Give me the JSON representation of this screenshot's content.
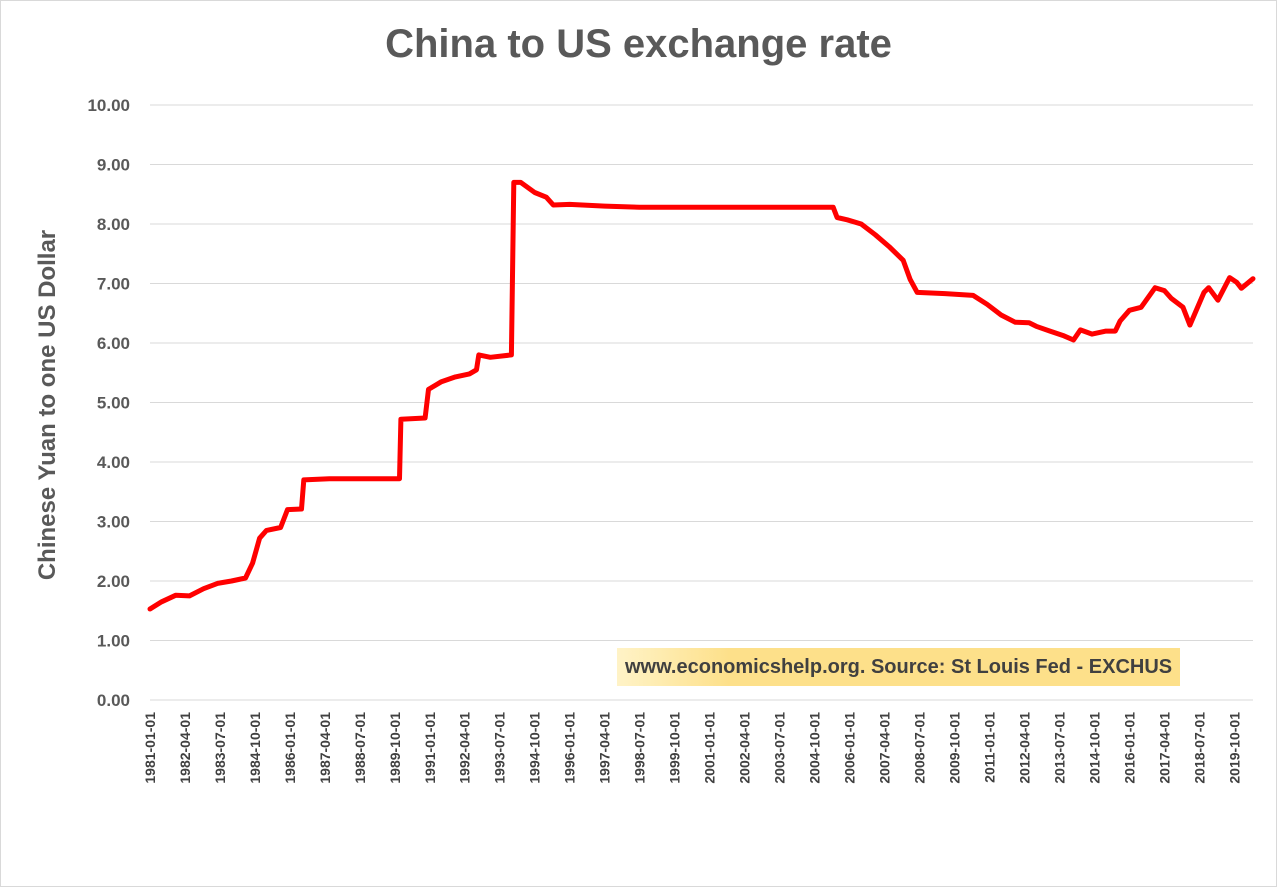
{
  "chart_data": {
    "type": "line",
    "title": "China to US exchange rate",
    "ylabel": "Chinese Yuan to one US Dollar",
    "xlabel": "",
    "ylim": [
      0,
      10
    ],
    "ytick_labels": [
      "0.00",
      "1.00",
      "2.00",
      "3.00",
      "4.00",
      "5.00",
      "6.00",
      "7.00",
      "8.00",
      "9.00",
      "10.00"
    ],
    "xtick_labels": [
      "1981-01-01",
      "1982-04-01",
      "1983-07-01",
      "1984-10-01",
      "1986-01-01",
      "1987-04-01",
      "1988-07-01",
      "1989-10-01",
      "1991-01-01",
      "1992-04-01",
      "1993-07-01",
      "1994-10-01",
      "1996-01-01",
      "1997-04-01",
      "1998-07-01",
      "1999-10-01",
      "2001-01-01",
      "2002-04-01",
      "2003-07-01",
      "2004-10-01",
      "2006-01-01",
      "2007-04-01",
      "2008-07-01",
      "2009-10-01",
      "2011-01-01",
      "2012-04-01",
      "2013-07-01",
      "2014-10-01",
      "2016-01-01",
      "2017-04-01",
      "2018-07-01",
      "2019-10-01"
    ],
    "x_range": [
      "1981-01-01",
      "2020-06-01"
    ],
    "grid": true,
    "legend": "none",
    "line_color": "#ff0000",
    "series": [
      {
        "points": [
          [
            "1981-01-01",
            1.53
          ],
          [
            "1981-06-01",
            1.65
          ],
          [
            "1981-12-01",
            1.76
          ],
          [
            "1982-06-01",
            1.75
          ],
          [
            "1982-12-01",
            1.87
          ],
          [
            "1983-06-01",
            1.96
          ],
          [
            "1983-12-01",
            2.0
          ],
          [
            "1984-06-01",
            2.05
          ],
          [
            "1984-09-01",
            2.3
          ],
          [
            "1984-12-01",
            2.72
          ],
          [
            "1985-03-01",
            2.85
          ],
          [
            "1985-09-01",
            2.9
          ],
          [
            "1985-12-01",
            3.2
          ],
          [
            "1986-06-01",
            3.21
          ],
          [
            "1986-07-01",
            3.7
          ],
          [
            "1987-06-01",
            3.72
          ],
          [
            "1988-06-01",
            3.72
          ],
          [
            "1989-06-01",
            3.72
          ],
          [
            "1989-12-01",
            3.72
          ],
          [
            "1989-12-20",
            4.72
          ],
          [
            "1990-11-01",
            4.74
          ],
          [
            "1990-12-15",
            5.22
          ],
          [
            "1991-06-01",
            5.35
          ],
          [
            "1991-12-01",
            5.43
          ],
          [
            "1992-06-01",
            5.48
          ],
          [
            "1992-09-01",
            5.55
          ],
          [
            "1992-10-01",
            5.8
          ],
          [
            "1993-03-01",
            5.76
          ],
          [
            "1993-12-01",
            5.8
          ],
          [
            "1994-01-01",
            8.7
          ],
          [
            "1994-04-01",
            8.7
          ],
          [
            "1994-10-01",
            8.53
          ],
          [
            "1995-03-01",
            8.45
          ],
          [
            "1995-06-01",
            8.32
          ],
          [
            "1996-01-01",
            8.33
          ],
          [
            "1997-04-01",
            8.3
          ],
          [
            "1998-07-01",
            8.28
          ],
          [
            "1999-10-01",
            8.28
          ],
          [
            "2001-01-01",
            8.28
          ],
          [
            "2002-04-01",
            8.28
          ],
          [
            "2003-07-01",
            8.28
          ],
          [
            "2004-10-01",
            8.28
          ],
          [
            "2005-06-01",
            8.28
          ],
          [
            "2005-07-22",
            8.11
          ],
          [
            "2005-12-01",
            8.07
          ],
          [
            "2006-06-01",
            8.0
          ],
          [
            "2006-12-01",
            7.82
          ],
          [
            "2007-06-01",
            7.62
          ],
          [
            "2007-12-01",
            7.39
          ],
          [
            "2008-03-01",
            7.07
          ],
          [
            "2008-06-01",
            6.85
          ],
          [
            "2009-06-01",
            6.83
          ],
          [
            "2010-06-01",
            6.8
          ],
          [
            "2010-12-01",
            6.65
          ],
          [
            "2011-06-01",
            6.47
          ],
          [
            "2011-12-01",
            6.35
          ],
          [
            "2012-06-01",
            6.34
          ],
          [
            "2012-09-01",
            6.28
          ],
          [
            "2013-03-01",
            6.2
          ],
          [
            "2013-09-01",
            6.12
          ],
          [
            "2014-01-01",
            6.05
          ],
          [
            "2014-04-01",
            6.22
          ],
          [
            "2014-09-01",
            6.15
          ],
          [
            "2015-03-01",
            6.2
          ],
          [
            "2015-07-01",
            6.2
          ],
          [
            "2015-09-01",
            6.37
          ],
          [
            "2016-01-01",
            6.55
          ],
          [
            "2016-06-01",
            6.6
          ],
          [
            "2016-12-01",
            6.93
          ],
          [
            "2017-04-01",
            6.88
          ],
          [
            "2017-07-01",
            6.75
          ],
          [
            "2017-12-01",
            6.6
          ],
          [
            "2018-03-01",
            6.3
          ],
          [
            "2018-09-01",
            6.85
          ],
          [
            "2018-11-01",
            6.93
          ],
          [
            "2019-03-01",
            6.72
          ],
          [
            "2019-08-01",
            7.1
          ],
          [
            "2019-11-01",
            7.02
          ],
          [
            "2020-01-01",
            6.92
          ],
          [
            "2020-06-01",
            7.08
          ]
        ]
      }
    ]
  },
  "source_note": "www.economicshelp.org. Source: St Louis Fed - EXCHUS"
}
